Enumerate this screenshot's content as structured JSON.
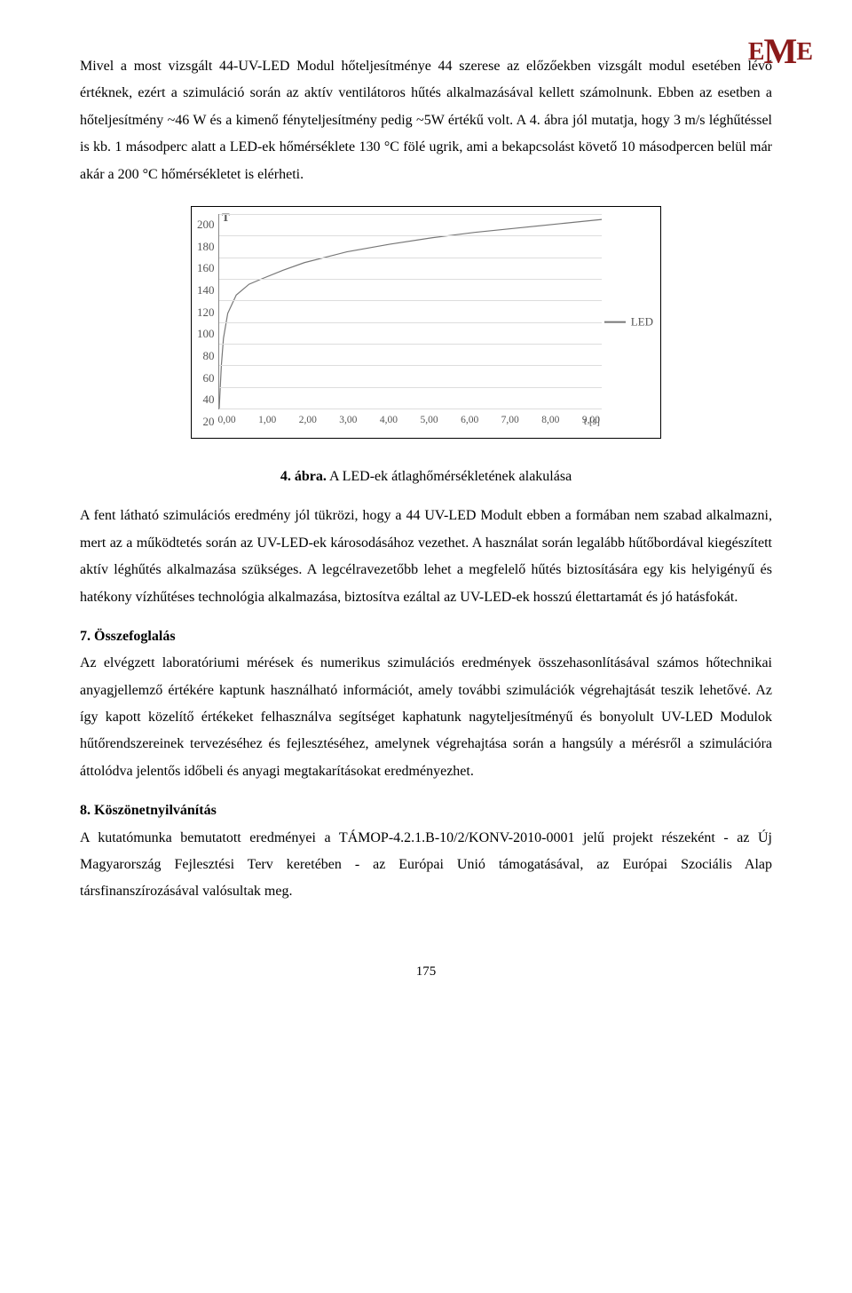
{
  "logo": {
    "left": "E",
    "mid": "M",
    "right": "E"
  },
  "para1": "Mivel a most vizsgált 44-UV-LED Modul hőteljesítménye 44 szerese az előzőekben vizsgált modul esetében lévő értéknek, ezért a szimuláció során az aktív ventilátoros hűtés alkalmazásával kellett számolnunk. Ebben az esetben a hőteljesítmény ~46 W és a kimenő fényteljesítmény pedig ~5W értékű volt. A 4. ábra jól mutatja, hogy 3 m/s léghűtéssel is kb. 1 másodperc alatt a LED-ek hőmérséklete 130 °C fölé ugrik, ami a bekapcsolást követő 10 másodpercen belül már akár a 200 °C hőmérsékletet is elérheti.",
  "chart": {
    "type": "line",
    "y_ticks": [
      "200",
      "180",
      "160",
      "140",
      "120",
      "100",
      "80",
      "60",
      "40",
      "20"
    ],
    "x_ticks": [
      "0,00",
      "1,00",
      "2,00",
      "3,00",
      "4,00",
      "5,00",
      "6,00",
      "7,00",
      "8,00",
      "9,00"
    ],
    "y_title": "T",
    "x_unit": "t [s]",
    "legend_label": "LED",
    "line_color": "#777777",
    "grid_color": "#dddddd",
    "axis_color": "#888888",
    "background_color": "#ffffff",
    "ylim": [
      20,
      200
    ],
    "xlim": [
      0,
      9
    ],
    "data_points": [
      [
        0.0,
        20
      ],
      [
        0.05,
        60
      ],
      [
        0.1,
        85
      ],
      [
        0.2,
        108
      ],
      [
        0.4,
        125
      ],
      [
        0.7,
        135
      ],
      [
        1.0,
        140
      ],
      [
        1.5,
        148
      ],
      [
        2.0,
        155
      ],
      [
        3.0,
        165
      ],
      [
        4.0,
        172
      ],
      [
        5.0,
        178
      ],
      [
        6.0,
        183
      ],
      [
        7.0,
        187
      ],
      [
        8.0,
        191
      ],
      [
        9.0,
        195
      ]
    ]
  },
  "caption_bold": "4. ábra.",
  "caption_rest": " A LED-ek átlaghőmérsékletének alakulása",
  "para2": "A fent látható szimulációs eredmény jól tükrözi, hogy a 44 UV-LED Modult ebben a formában nem szabad alkalmazni, mert az a működtetés során az UV-LED-ek károsodásához vezethet. A használat során legalább hűtőbordával kiegészített aktív léghűtés alkalmazása szükséges. A legcélravezetőbb lehet a megfelelő hűtés biztosítására egy kis helyigényű és hatékony vízhűtéses technológia alkalmazása, biztosítva ezáltal az UV-LED-ek hosszú élettartamát és jó hatásfokát.",
  "section7_title": "7. Összefoglalás",
  "para3": "Az elvégzett laboratóriumi mérések és numerikus szimulációs eredmények összehasonlításával számos hőtechnikai anyagjellemző értékére kaptunk használható információt, amely további szimulációk végrehajtását teszik lehetővé. Az így kapott közelítő értékeket felhasználva segítséget kaphatunk nagyteljesítményű és bonyolult UV-LED Modulok hűtőrendszereinek tervezéséhez és fejlesztéséhez, amelynek végrehajtása során a hangsúly a mérésről a szimulációra áttolódva jelentős időbeli és anyagi megtakarításokat eredményezhet.",
  "section8_title": "8. Köszönetnyilvánítás",
  "para4": "A kutatómunka bemutatott eredményei a TÁMOP-4.2.1.B-10/2/KONV-2010-0001 jelű projekt részeként - az Új Magyarország Fejlesztési Terv keretében - az Európai Unió támogatásával, az Európai Szociális Alap társfinanszírozásával valósultak meg.",
  "page_number": "175"
}
